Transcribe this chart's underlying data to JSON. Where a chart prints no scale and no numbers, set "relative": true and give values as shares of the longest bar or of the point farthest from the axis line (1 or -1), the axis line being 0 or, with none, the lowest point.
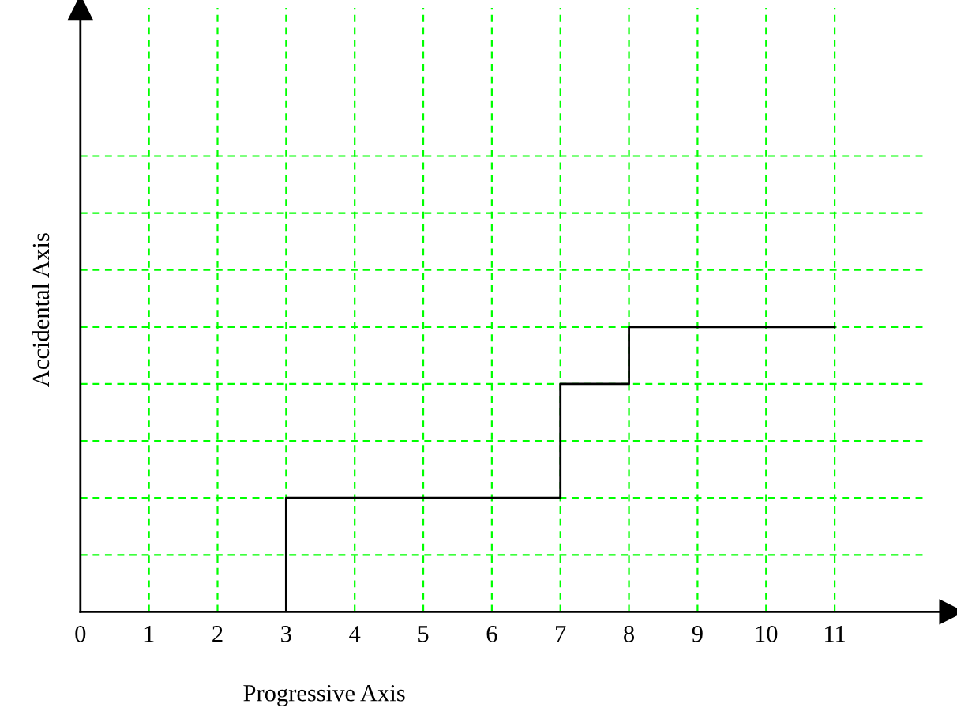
{
  "chart_data": {
    "type": "step",
    "xlabel": "Progressive Axis",
    "ylabel": "Accidental Axis",
    "x": [
      0,
      3,
      7,
      8,
      11
    ],
    "series": [
      {
        "color": "#000000",
        "values": [
          0,
          0.4,
          0.8,
          1,
          1
        ]
      }
    ],
    "relative": true,
    "xlim": [
      0,
      12.7
    ],
    "xticks": [
      0,
      1,
      2,
      3,
      4,
      5,
      6,
      7,
      8,
      9,
      10,
      11
    ],
    "grid": true,
    "line_style": "solid",
    "marker": "none"
  }
}
